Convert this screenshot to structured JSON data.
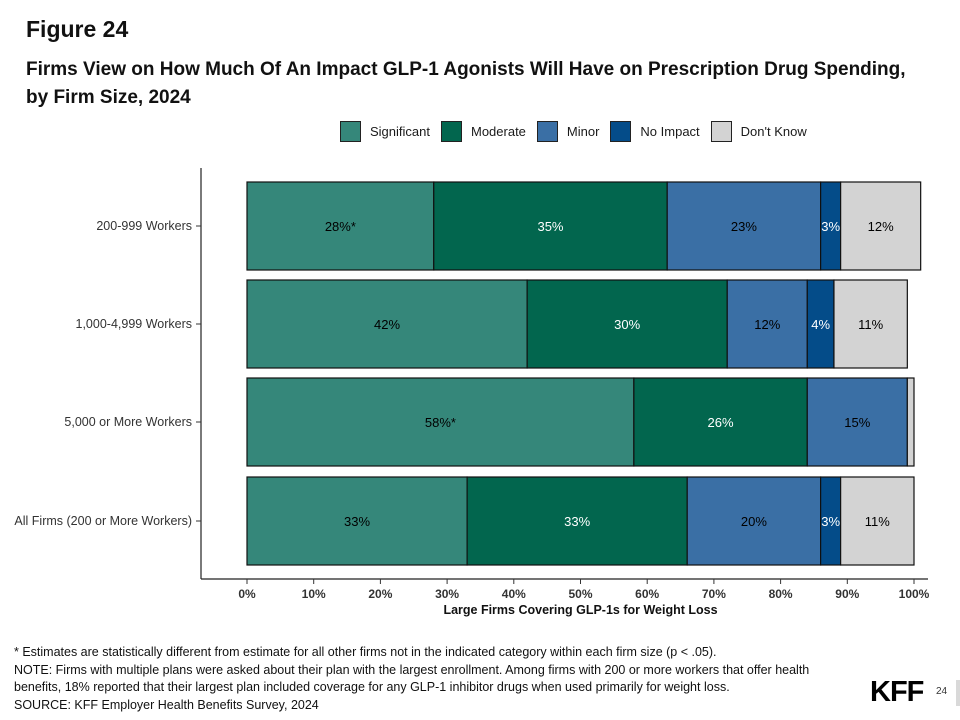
{
  "figure_label": "Figure 24",
  "title": "Firms View on How Much Of An Impact GLP-1 Agonists Will Have on Prescription Drug Spending, by Firm Size, 2024",
  "legend": [
    {
      "label": "Significant",
      "color": "#35877A"
    },
    {
      "label": "Moderate",
      "color": "#02664E"
    },
    {
      "label": "Minor",
      "color": "#3A6FA5"
    },
    {
      "label": "No Impact",
      "color": "#044C89"
    },
    {
      "label": "Don't Know",
      "color": "#D3D3D3"
    }
  ],
  "chart_data": {
    "type": "bar",
    "orientation": "horizontal",
    "stacked": true,
    "categories": [
      "200-999 Workers",
      "1,000-4,999 Workers",
      "5,000 or More Workers",
      "All Firms (200 or More Workers)"
    ],
    "series": [
      {
        "name": "Significant",
        "values": [
          28,
          42,
          58,
          33
        ],
        "labels": [
          "28%*",
          "42%",
          "58%*",
          "33%"
        ],
        "label_color": "#000000"
      },
      {
        "name": "Moderate",
        "values": [
          35,
          30,
          26,
          33
        ],
        "labels": [
          "35%",
          "30%",
          "26%",
          "33%"
        ],
        "label_color": "#ffffff"
      },
      {
        "name": "Minor",
        "values": [
          23,
          12,
          15,
          20
        ],
        "labels": [
          "23%",
          "12%",
          "15%",
          "20%"
        ],
        "label_color": "#000000"
      },
      {
        "name": "No Impact",
        "values": [
          3,
          4,
          0,
          3
        ],
        "labels": [
          "3%",
          "4%",
          "",
          "3%"
        ],
        "label_color": "#ffffff"
      },
      {
        "name": "Don't Know",
        "values": [
          12,
          11,
          1,
          11
        ],
        "labels": [
          "12%",
          "11%",
          "",
          "11%"
        ],
        "label_color": "#000000"
      }
    ],
    "xlabel": "Large Firms Covering GLP-1s for Weight Loss",
    "xlim": [
      0,
      100
    ],
    "xticks": [
      "0%",
      "10%",
      "20%",
      "30%",
      "40%",
      "50%",
      "60%",
      "70%",
      "80%",
      "90%",
      "100%"
    ],
    "grid": false,
    "legend_position": "top"
  },
  "footnotes": [
    "* Estimates are statistically different from estimate for all other firms not in the indicated category within each firm size (p < .05).",
    "NOTE: Firms with multiple plans were asked about their plan with the largest enrollment.  Among firms with 200 or more workers that offer health",
    "benefits, 18% reported that their largest plan included coverage for any GLP-1 inhibitor drugs when used primarily for weight loss.",
    "SOURCE: KFF Employer Health Benefits Survey, 2024"
  ],
  "logo_text": "KFF",
  "page_number": "24"
}
